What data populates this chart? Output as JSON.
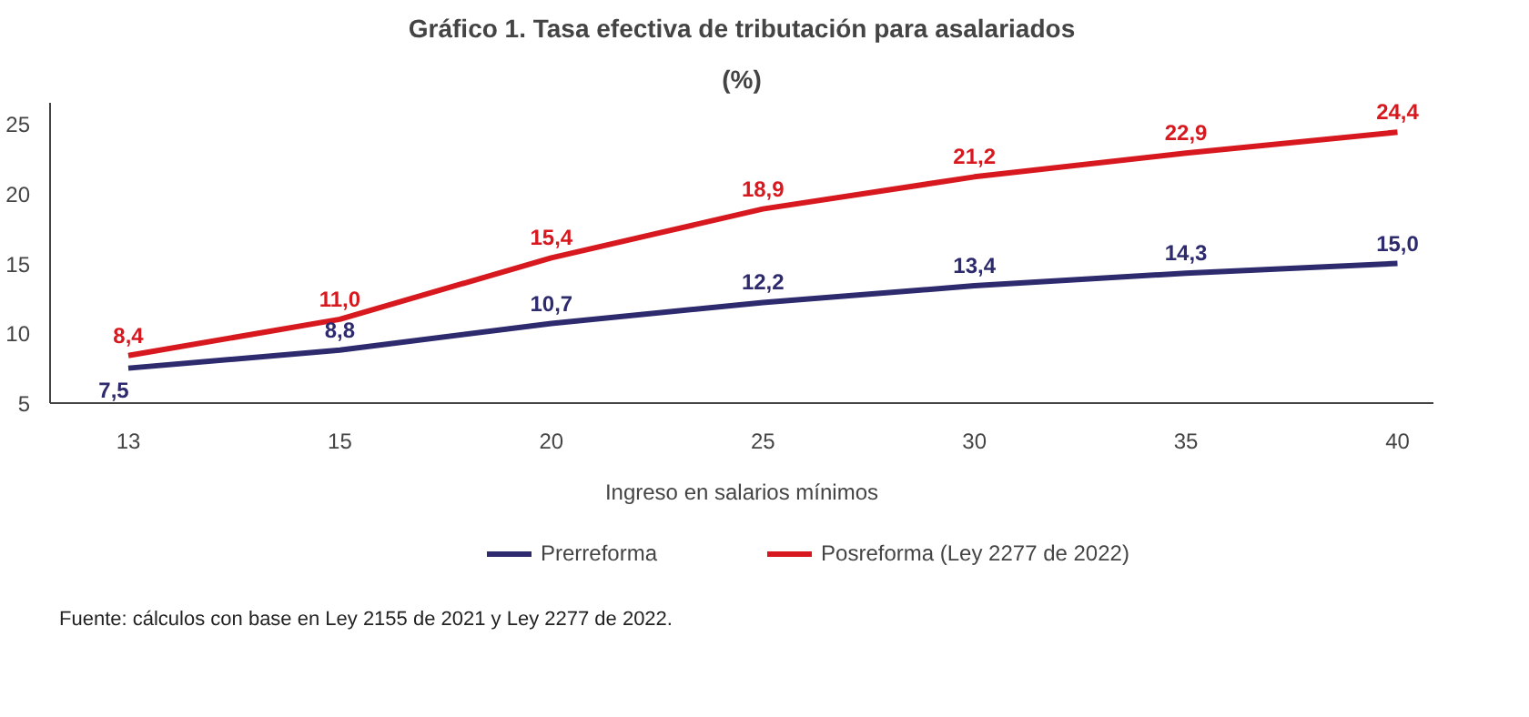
{
  "chart_data": {
    "type": "line",
    "title": "Gráfico 1. Tasa efectiva de tributación para asalariados",
    "subtitle": "(%)",
    "xlabel": "Ingreso en salarios mínimos",
    "categories": [
      "13",
      "15",
      "20",
      "25",
      "30",
      "35",
      "40"
    ],
    "series": [
      {
        "name": "Prerreforma",
        "color": "#2e2a6e",
        "values": [
          7.5,
          8.8,
          10.7,
          12.2,
          13.4,
          14.3,
          15.0
        ],
        "value_labels": [
          "7,5",
          "8,8",
          "10,7",
          "12,2",
          "13,4",
          "14,3",
          "15,0"
        ]
      },
      {
        "name": "Posreforma (Ley 2277 de 2022)",
        "color": "#d7191f",
        "values": [
          8.4,
          11.0,
          15.4,
          18.9,
          21.2,
          22.9,
          24.4
        ],
        "value_labels": [
          "8,4",
          "11,0",
          "15,4",
          "18,9",
          "21,2",
          "22,9",
          "24,4"
        ]
      }
    ],
    "ylim": [
      5,
      26.5
    ],
    "yticks": [
      5,
      10,
      15,
      20,
      25
    ],
    "grid": false,
    "legend": "bottom",
    "marker": "none",
    "line_style": "solid",
    "annotations": [
      "Fuente: cálculos con base en Ley 2155 de 2021 y Ley 2277 de 2022."
    ]
  }
}
